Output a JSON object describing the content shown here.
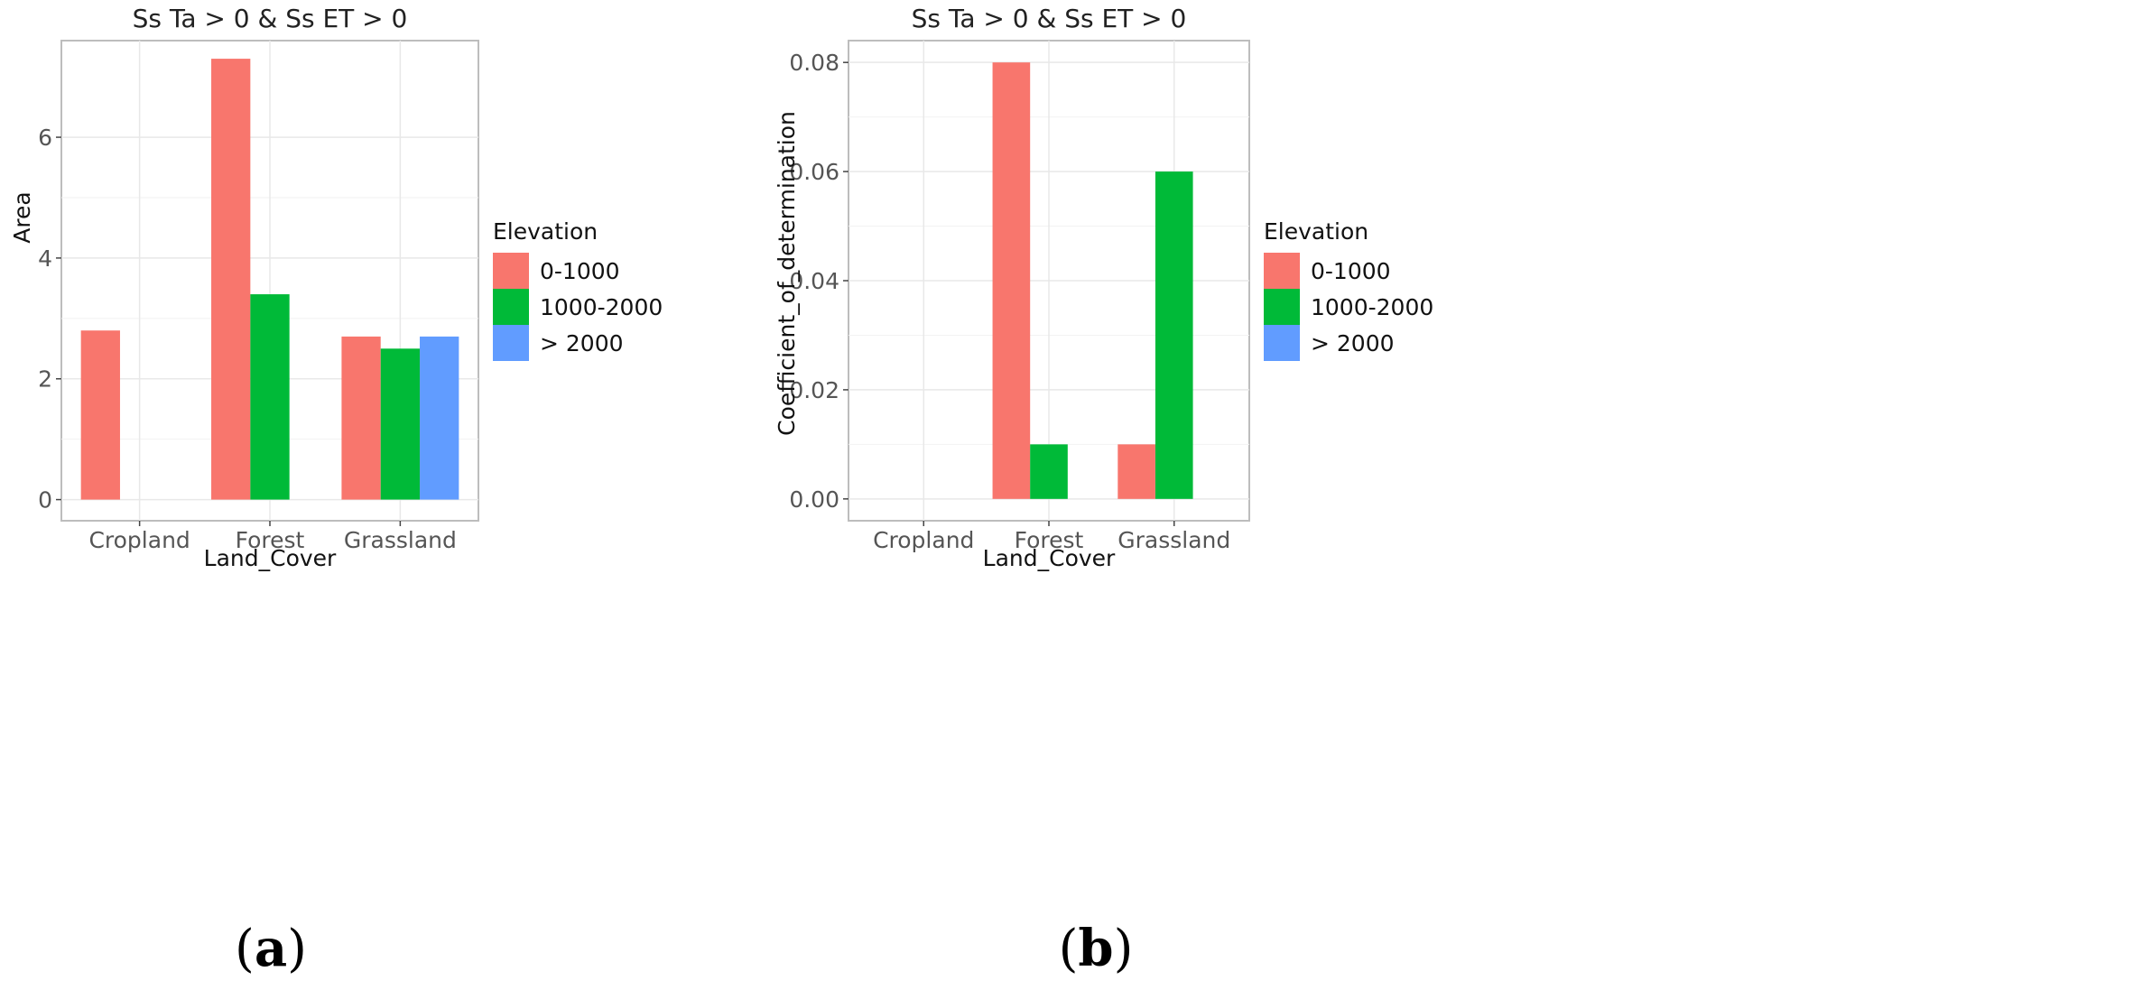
{
  "chart_data": [
    {
      "type": "bar",
      "panel_label": "a",
      "title": "Ss Ta > 0 & Ss ET > 0",
      "xlabel": "Land_Cover",
      "ylabel": "Area",
      "categories": [
        "Cropland",
        "Forest",
        "Grassland"
      ],
      "ylim": [
        -0.35,
        7.6
      ],
      "yticks": [
        0,
        2,
        4,
        6
      ],
      "ytick_labels": [
        "0",
        "2",
        "4",
        "6"
      ],
      "grid": true,
      "legend": {
        "title": "Elevation",
        "position": "right",
        "entries": [
          "0-1000",
          "1000-2000",
          "> 2000"
        ]
      },
      "series": [
        {
          "name": "0-1000",
          "color": "#F8766D",
          "values": [
            2.8,
            7.3,
            2.7
          ]
        },
        {
          "name": "1000-2000",
          "color": "#00BA38",
          "values": [
            null,
            3.4,
            2.5
          ]
        },
        {
          "name": "> 2000",
          "color": "#619CFF",
          "values": [
            null,
            null,
            2.7
          ]
        }
      ]
    },
    {
      "type": "bar",
      "panel_label": "b",
      "title": "Ss Ta > 0 & Ss ET > 0",
      "xlabel": "Land_Cover",
      "ylabel": "Coefficient_of_determination",
      "categories": [
        "Cropland",
        "Forest",
        "Grassland"
      ],
      "ylim": [
        -0.004,
        0.084
      ],
      "yticks": [
        0,
        0.02,
        0.04,
        0.06,
        0.08
      ],
      "ytick_labels": [
        "0.00",
        "0.02",
        "0.04",
        "0.06",
        "0.08"
      ],
      "grid": true,
      "legend": {
        "title": "Elevation",
        "position": "right",
        "entries": [
          "0-1000",
          "1000-2000",
          "> 2000"
        ]
      },
      "series": [
        {
          "name": "0-1000",
          "color": "#F8766D",
          "values": [
            null,
            0.08,
            0.01
          ]
        },
        {
          "name": "1000-2000",
          "color": "#00BA38",
          "values": [
            null,
            0.01,
            0.06
          ]
        },
        {
          "name": "> 2000",
          "color": "#619CFF",
          "values": [
            null,
            null,
            null
          ]
        }
      ]
    }
  ]
}
